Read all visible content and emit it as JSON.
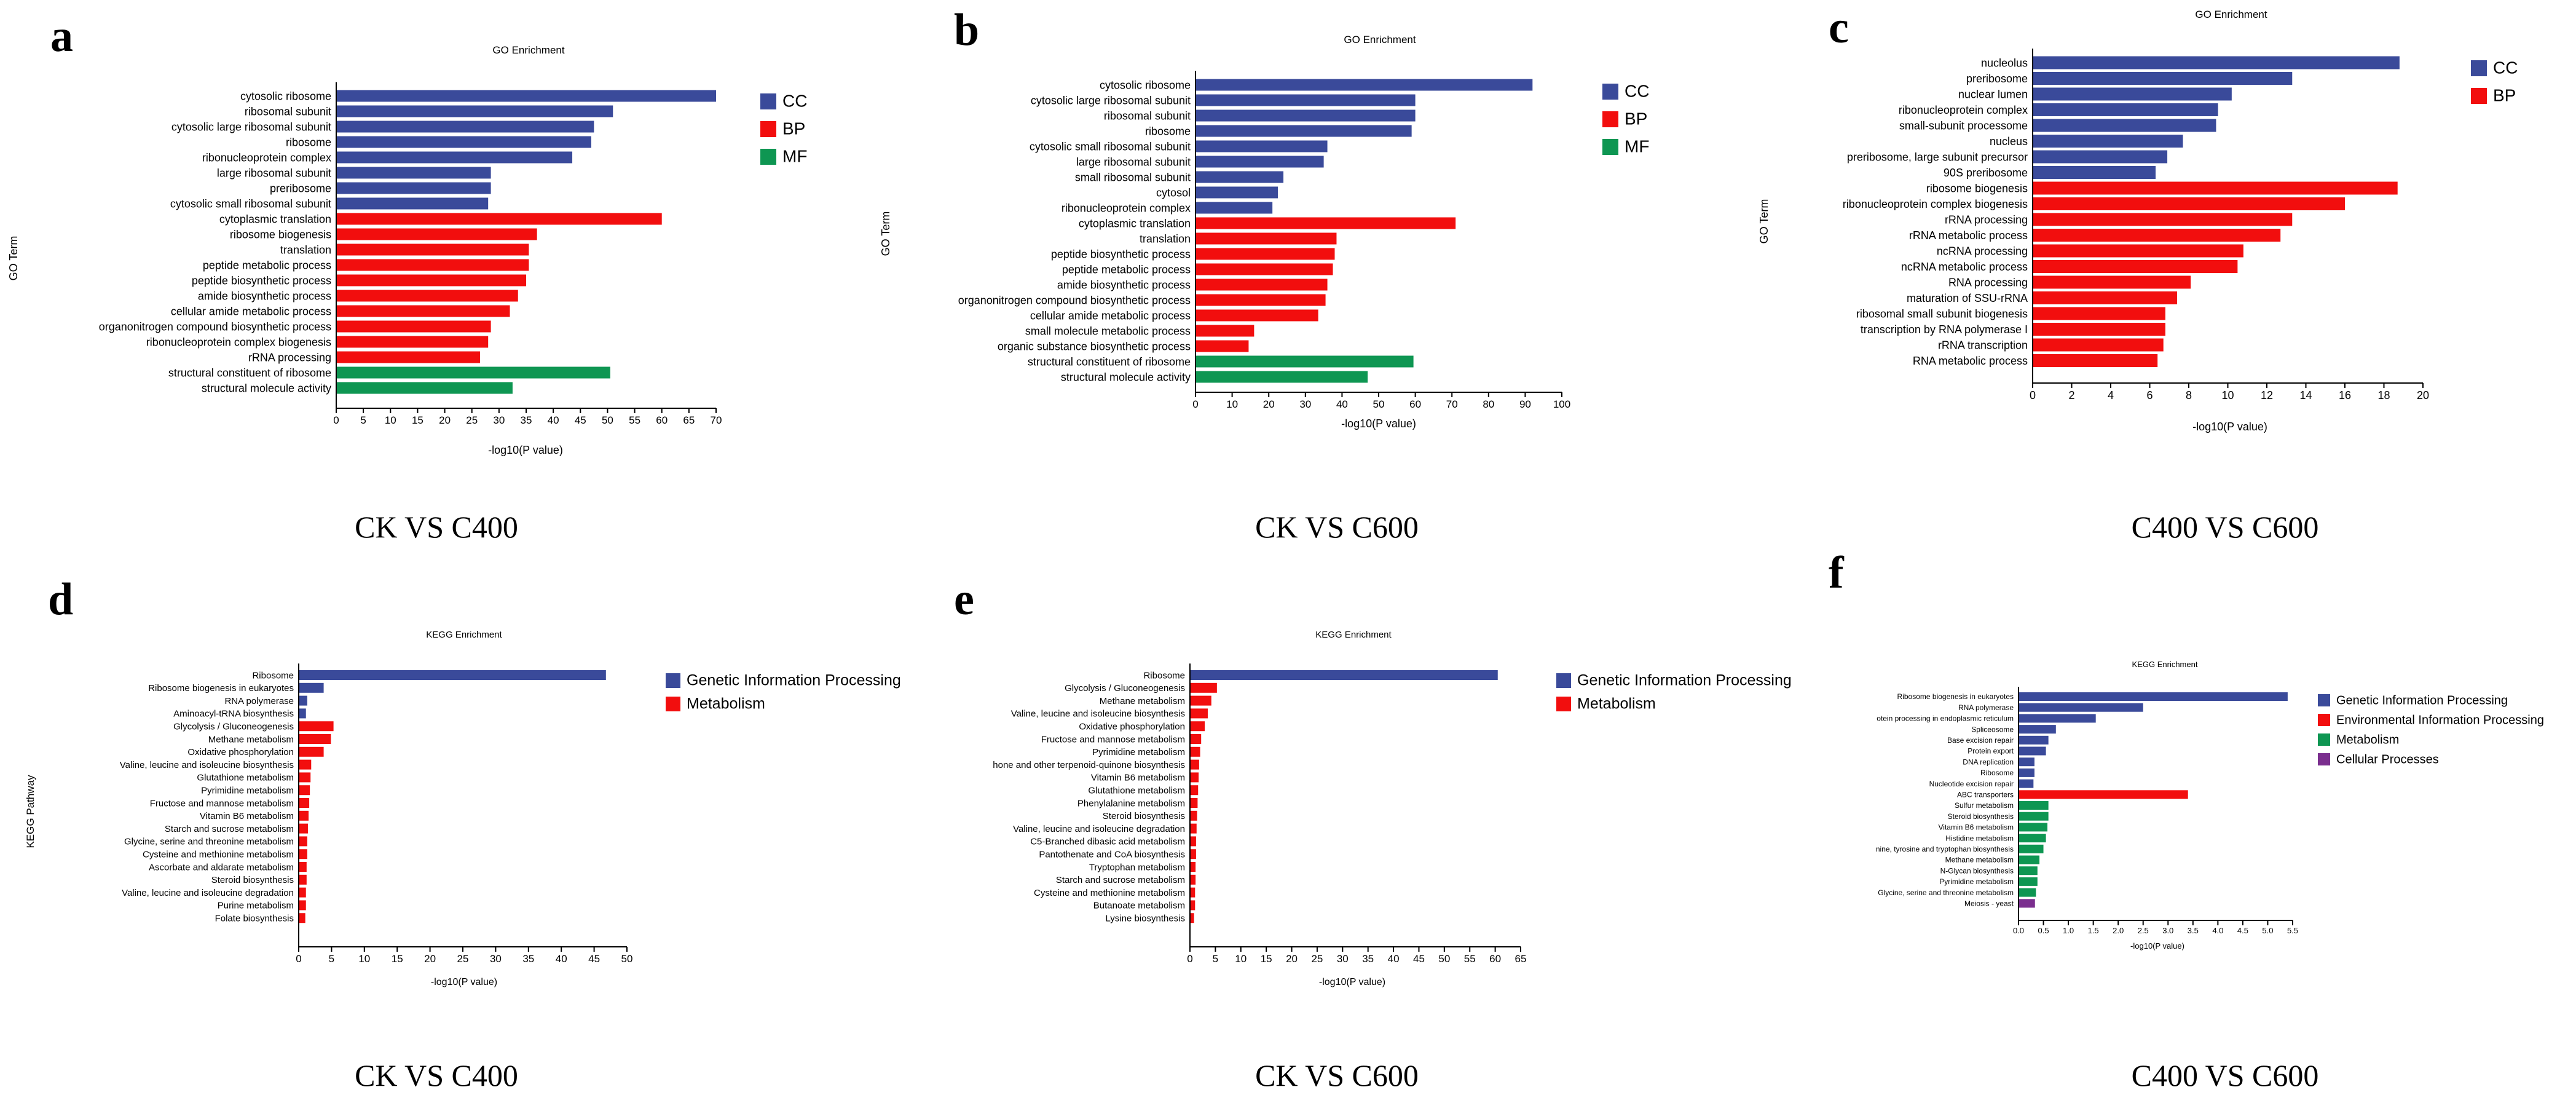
{
  "colors": {
    "CC": "#3a4a9a",
    "BP": "#f20e0e",
    "MF": "#0e9652",
    "Genetic Information Processing": "#3a4a9a",
    "Metabolism_kegg": "#f20e0e"
  },
  "panels": [
    {
      "label": "a",
      "caption": "CK VS C400"
    },
    {
      "label": "b",
      "caption": "CK VS C600"
    },
    {
      "label": "c",
      "caption": "C400 VS C600"
    },
    {
      "label": "d",
      "caption": "CK VS C400"
    },
    {
      "label": "e",
      "caption": "CK VS C600"
    },
    {
      "label": "f",
      "caption": "C400 VS C600"
    }
  ],
  "chart_data": [
    {
      "id": "a",
      "type": "bar",
      "orientation": "horizontal",
      "title": "GO Enrichment",
      "xlabel": "-log10(P value)",
      "ylabel": "GO Term",
      "xlim": [
        0,
        70
      ],
      "xticks": [
        0,
        5,
        10,
        15,
        20,
        25,
        30,
        35,
        40,
        45,
        50,
        55,
        60,
        65,
        70
      ],
      "legend": [
        {
          "name": "CC",
          "color": "#3a4a9a"
        },
        {
          "name": "BP",
          "color": "#f20e0e"
        },
        {
          "name": "MF",
          "color": "#0e9652"
        }
      ],
      "categories": [
        "cytosolic ribosome",
        "ribosomal subunit",
        "cytosolic large ribosomal subunit",
        "ribosome",
        "ribonucleoprotein complex",
        "large ribosomal subunit",
        "preribosome",
        "cytosolic small ribosomal subunit",
        "cytoplasmic translation",
        "ribosome biogenesis",
        "translation",
        "peptide metabolic process",
        "peptide biosynthetic process",
        "amide biosynthetic process",
        "cellular amide metabolic process",
        "organonitrogen compound biosynthetic process",
        "ribonucleoprotein complex biogenesis",
        "rRNA processing",
        "structural constituent of ribosome",
        "structural molecule activity"
      ],
      "values": [
        70,
        51,
        47.5,
        47,
        43.5,
        28.5,
        28.5,
        28,
        60,
        37,
        35.5,
        35.5,
        35,
        33.5,
        32,
        28.5,
        28,
        26.5,
        50.5,
        32.5
      ],
      "groups": [
        "CC",
        "CC",
        "CC",
        "CC",
        "CC",
        "CC",
        "CC",
        "CC",
        "BP",
        "BP",
        "BP",
        "BP",
        "BP",
        "BP",
        "BP",
        "BP",
        "BP",
        "BP",
        "MF",
        "MF"
      ]
    },
    {
      "id": "b",
      "type": "bar",
      "orientation": "horizontal",
      "title": "GO Enrichment",
      "xlabel": "-log10(P value)",
      "ylabel": "GO Term",
      "xlim": [
        0,
        100
      ],
      "xticks": [
        0,
        10,
        20,
        30,
        40,
        50,
        60,
        70,
        80,
        90,
        100
      ],
      "legend": [
        {
          "name": "CC",
          "color": "#3a4a9a"
        },
        {
          "name": "BP",
          "color": "#f20e0e"
        },
        {
          "name": "MF",
          "color": "#0e9652"
        }
      ],
      "categories": [
        "cytosolic ribosome",
        "cytosolic large ribosomal subunit",
        "ribosomal subunit",
        "ribosome",
        "cytosolic small ribosomal subunit",
        "large ribosomal subunit",
        "small ribosomal subunit",
        "cytosol",
        "ribonucleoprotein complex",
        "cytoplasmic translation",
        "translation",
        "peptide biosynthetic process",
        "peptide metabolic process",
        "amide biosynthetic process",
        "organonitrogen compound biosynthetic process",
        "cellular amide metabolic process",
        "small molecule metabolic process",
        "organic substance biosynthetic process",
        "structural constituent of ribosome",
        "structural molecule activity"
      ],
      "values": [
        92,
        60,
        60,
        59,
        36,
        35,
        24,
        22.5,
        21,
        71,
        38.5,
        38,
        37.5,
        36,
        35.5,
        33.5,
        16,
        14.5,
        59.5,
        47
      ],
      "groups": [
        "CC",
        "CC",
        "CC",
        "CC",
        "CC",
        "CC",
        "CC",
        "CC",
        "CC",
        "BP",
        "BP",
        "BP",
        "BP",
        "BP",
        "BP",
        "BP",
        "BP",
        "BP",
        "MF",
        "MF"
      ]
    },
    {
      "id": "c",
      "type": "bar",
      "orientation": "horizontal",
      "title": "GO Enrichment",
      "xlabel": "-log10(P value)",
      "ylabel": "GO Term",
      "xlim": [
        0,
        20
      ],
      "xticks": [
        0,
        2,
        4,
        6,
        8,
        10,
        12,
        14,
        16,
        18,
        20
      ],
      "legend": [
        {
          "name": "CC",
          "color": "#3a4a9a"
        },
        {
          "name": "BP",
          "color": "#f20e0e"
        }
      ],
      "categories": [
        "nucleolus",
        "preribosome",
        "nuclear lumen",
        "ribonucleoprotein complex",
        "small-subunit processome",
        "nucleus",
        "preribosome, large subunit precursor",
        "90S preribosome",
        "ribosome biogenesis",
        "ribonucleoprotein complex biogenesis",
        "rRNA processing",
        "rRNA metabolic process",
        "ncRNA processing",
        "ncRNA metabolic process",
        "RNA processing",
        "maturation of SSU-rRNA",
        "ribosomal small subunit biogenesis",
        "transcription by RNA polymerase I",
        "rRNA transcription",
        "RNA metabolic process"
      ],
      "values": [
        18.8,
        13.3,
        10.2,
        9.5,
        9.4,
        7.7,
        6.9,
        6.3,
        18.7,
        16,
        13.3,
        12.7,
        10.8,
        10.5,
        8.1,
        7.4,
        6.8,
        6.8,
        6.7,
        6.4
      ],
      "groups": [
        "CC",
        "CC",
        "CC",
        "CC",
        "CC",
        "CC",
        "CC",
        "CC",
        "BP",
        "BP",
        "BP",
        "BP",
        "BP",
        "BP",
        "BP",
        "BP",
        "BP",
        "BP",
        "BP",
        "BP"
      ]
    },
    {
      "id": "d",
      "type": "bar",
      "orientation": "horizontal",
      "title": "KEGG Enrichment",
      "xlabel": "-log10(P value)",
      "ylabel": "KEGG Pathway",
      "xlim": [
        0,
        50
      ],
      "xticks": [
        0,
        5,
        10,
        15,
        20,
        25,
        30,
        35,
        40,
        45,
        50
      ],
      "legend": [
        {
          "name": "Genetic Information Processing",
          "color": "#3a4a9a"
        },
        {
          "name": "Metabolism",
          "color": "#f20e0e"
        }
      ],
      "categories": [
        "Ribosome",
        "Ribosome biogenesis in eukaryotes",
        "RNA polymerase",
        "Aminoacyl-tRNA biosynthesis",
        "Glycolysis / Gluconeogenesis",
        "Methane metabolism",
        "Oxidative phosphorylation",
        "Valine, leucine and isoleucine biosynthesis",
        "Glutathione metabolism",
        "Pyrimidine metabolism",
        "Fructose and mannose metabolism",
        "Vitamin B6 metabolism",
        "Starch and sucrose metabolism",
        "Glycine, serine and threonine metabolism",
        "Cysteine and methionine metabolism",
        "Ascorbate and aldarate metabolism",
        "Steroid biosynthesis",
        "Valine, leucine and isoleucine degradation",
        "Purine metabolism",
        "Folate biosynthesis"
      ],
      "values": [
        46.8,
        3.8,
        1.3,
        1.1,
        5.3,
        4.9,
        3.8,
        1.9,
        1.8,
        1.7,
        1.6,
        1.5,
        1.4,
        1.3,
        1.3,
        1.2,
        1.2,
        1.1,
        1.1,
        1.0
      ],
      "groups": [
        "GIP",
        "GIP",
        "GIP",
        "GIP",
        "MET",
        "MET",
        "MET",
        "MET",
        "MET",
        "MET",
        "MET",
        "MET",
        "MET",
        "MET",
        "MET",
        "MET",
        "MET",
        "MET",
        "MET",
        "MET"
      ]
    },
    {
      "id": "e",
      "type": "bar",
      "orientation": "horizontal",
      "title": "KEGG Enrichment",
      "xlabel": "-log10(P value)",
      "ylabel": "",
      "xlim": [
        0,
        65
      ],
      "xticks": [
        0,
        5,
        10,
        15,
        20,
        25,
        30,
        35,
        40,
        45,
        50,
        55,
        60,
        65
      ],
      "legend": [
        {
          "name": "Genetic Information Processing",
          "color": "#3a4a9a"
        },
        {
          "name": "Metabolism",
          "color": "#f20e0e"
        }
      ],
      "categories": [
        "Ribosome",
        "Glycolysis / Gluconeogenesis",
        "Methane metabolism",
        "Valine, leucine and isoleucine biosynthesis",
        "Oxidative phosphorylation",
        "Fructose and mannose metabolism",
        "Pyrimidine metabolism",
        "hone and other terpenoid-quinone biosynthesis",
        "Vitamin B6 metabolism",
        "Glutathione metabolism",
        "Phenylalanine metabolism",
        "Steroid biosynthesis",
        "Valine, leucine and isoleucine degradation",
        "C5-Branched dibasic acid metabolism",
        "Pantothenate and CoA biosynthesis",
        "Tryptophan metabolism",
        "Starch and sucrose metabolism",
        "Cysteine and methionine metabolism",
        "Butanoate metabolism",
        "Lysine biosynthesis"
      ],
      "values": [
        60.5,
        5.3,
        4.2,
        3.5,
        2.9,
        2.2,
        2.0,
        1.8,
        1.7,
        1.6,
        1.5,
        1.4,
        1.3,
        1.2,
        1.2,
        1.1,
        1.1,
        1.0,
        1.0,
        0.8
      ],
      "groups": [
        "GIP",
        "MET",
        "MET",
        "MET",
        "MET",
        "MET",
        "MET",
        "MET",
        "MET",
        "MET",
        "MET",
        "MET",
        "MET",
        "MET",
        "MET",
        "MET",
        "MET",
        "MET",
        "MET",
        "MET"
      ]
    },
    {
      "id": "f",
      "type": "bar",
      "orientation": "horizontal",
      "title": "KEGG Enrichment",
      "xlabel": "-log10(P value)",
      "ylabel": "",
      "xlim": [
        0,
        5.5
      ],
      "xticks": [
        0.0,
        0.5,
        1.0,
        1.5,
        2.0,
        2.5,
        3.0,
        3.5,
        4.0,
        4.5,
        5.0,
        5.5
      ],
      "legend": [
        {
          "name": "Genetic Information Processing",
          "color": "#3a4a9a"
        },
        {
          "name": "Environmental Information Processing",
          "color": "#f20e0e"
        },
        {
          "name": "Metabolism",
          "color": "#0e9652"
        },
        {
          "name": "Cellular Processes",
          "color": "#7a2e8e"
        }
      ],
      "categories": [
        "Ribosome biogenesis in eukaryotes",
        "RNA polymerase",
        "otein processing in endoplasmic reticulum",
        "Spliceosome",
        "Base excision repair",
        "Protein export",
        "DNA replication",
        "Ribosome",
        "Nucleotide excision repair",
        "ABC transporters",
        "Sulfur metabolism",
        "Steroid biosynthesis",
        "Vitamin B6 metabolism",
        "Histidine metabolism",
        "nine, tyrosine and tryptophan biosynthesis",
        "Methane metabolism",
        "N-Glycan biosynthesis",
        "Pyrimidine metabolism",
        "Glycine, serine and threonine metabolism",
        "Meiosis - yeast"
      ],
      "values": [
        5.4,
        2.5,
        1.55,
        0.75,
        0.6,
        0.55,
        0.32,
        0.32,
        0.3,
        3.4,
        0.6,
        0.6,
        0.58,
        0.55,
        0.5,
        0.42,
        0.38,
        0.38,
        0.35,
        0.33
      ],
      "groups": [
        "GIP",
        "GIP",
        "GIP",
        "GIP",
        "GIP",
        "GIP",
        "GIP",
        "GIP",
        "GIP",
        "EIP",
        "MET",
        "MET",
        "MET",
        "MET",
        "MET",
        "MET",
        "MET",
        "MET",
        "MET",
        "CP"
      ]
    }
  ]
}
